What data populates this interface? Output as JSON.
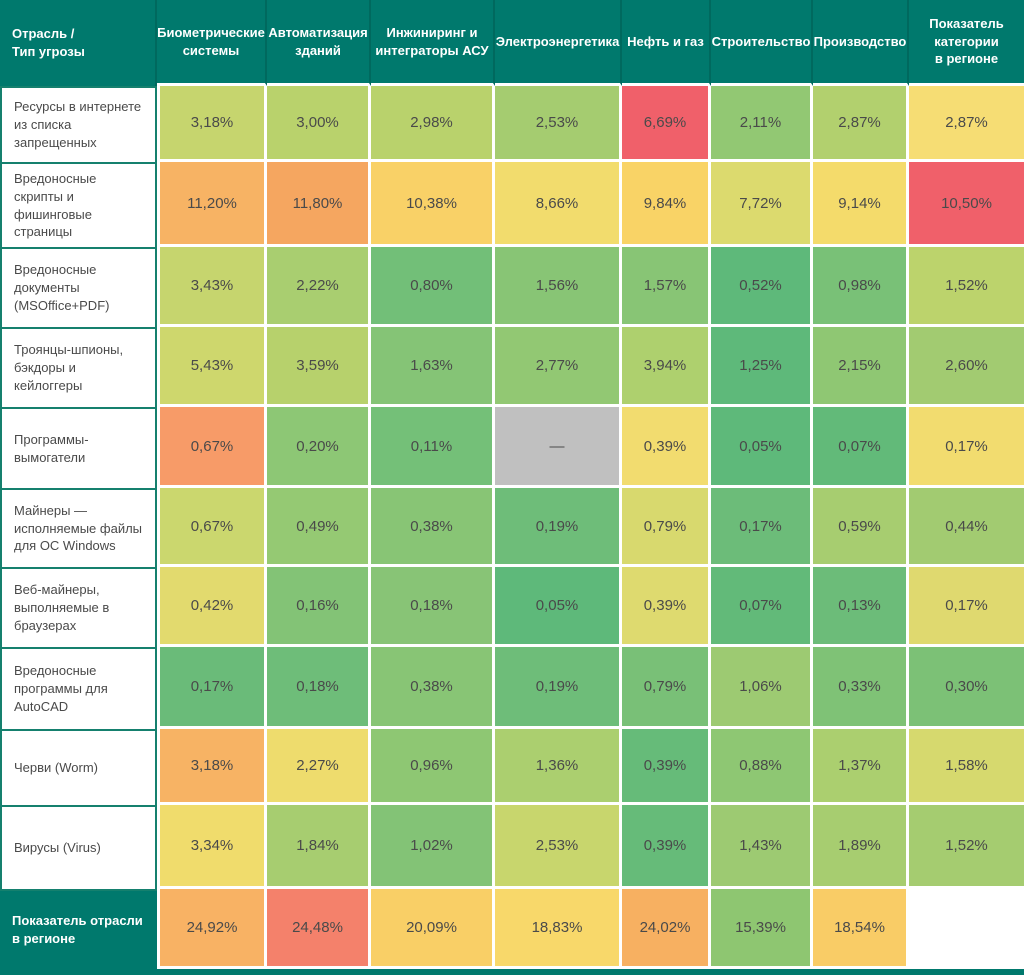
{
  "colors": {
    "header_bg": "#00796d",
    "header_divider": "#00695e",
    "label_border": "#15806e",
    "value_text": "#4a4a4a",
    "na_bg": "#c0c0c0",
    "page_bg": "#ffffff"
  },
  "table": {
    "corner_header": "Отрасль /\nТип угрозы",
    "columns": [
      "Биометрические\nсистемы",
      "Автоматизация\nзданий",
      "Инжиниринг и\nинтеграторы АСУ",
      "Электроэнергетика",
      "Нефть и газ",
      "Строительство",
      "Производство",
      "Показатель\nкатегории\nв регионе"
    ],
    "rows": [
      {
        "label": "Ресурсы в интернете\nиз списка\nзапрещенных",
        "values": [
          "3,18%",
          "3,00%",
          "2,98%",
          "2,53%",
          "6,69%",
          "2,11%",
          "2,87%",
          "2,87%"
        ],
        "colors": [
          "#c6d56e",
          "#b9d26c",
          "#b9d26c",
          "#a5cc70",
          "#f0606a",
          "#92c873",
          "#b2d06e",
          "#f6dd74"
        ]
      },
      {
        "label": "Вредоносные\nскрипты и\nфишинговые\nстраницы",
        "values": [
          "11,20%",
          "11,80%",
          "10,38%",
          "8,66%",
          "9,84%",
          "7,72%",
          "9,14%",
          "10,50%"
        ],
        "colors": [
          "#f7b364",
          "#f5a660",
          "#f9d167",
          "#f2dc6d",
          "#f9d366",
          "#dcda6e",
          "#f4db6b",
          "#f0606a"
        ]
      },
      {
        "label": "Вредоносные\nдокументы\n(MSOffice+PDF)",
        "values": [
          "3,43%",
          "2,22%",
          "0,80%",
          "1,56%",
          "1,57%",
          "0,52%",
          "0,98%",
          "1,52%"
        ],
        "colors": [
          "#c6d56e",
          "#a9ce70",
          "#72bf78",
          "#88c575",
          "#88c575",
          "#5eb97a",
          "#79c177",
          "#bcd36c"
        ]
      },
      {
        "label": "Троянцы-шпионы,\nбэкдоры и\nкейлоггеры",
        "values": [
          "5,43%",
          "3,59%",
          "1,63%",
          "2,77%",
          "3,94%",
          "1,25%",
          "2,15%",
          "2,60%"
        ],
        "colors": [
          "#ced76d",
          "#b7d16c",
          "#85c476",
          "#92c873",
          "#aed06e",
          "#5eb97a",
          "#8fc773",
          "#a2cb71"
        ]
      },
      {
        "label": "Программы-\nвымогатели",
        "values": [
          "0,67%",
          "0,20%",
          "0,11%",
          "—",
          "0,39%",
          "0,05%",
          "0,07%",
          "0,17%"
        ],
        "colors": [
          "#f79b68",
          "#8dc775",
          "#74c078",
          "#c0c0c0",
          "#f2dc6f",
          "#5eb97a",
          "#62ba79",
          "#f2dc6f"
        ]
      },
      {
        "label": "Майнеры —\nисполняемые файлы\nдля ОС Windows",
        "values": [
          "0,67%",
          "0,49%",
          "0,38%",
          "0,19%",
          "0,79%",
          "0,17%",
          "0,59%",
          "0,44%"
        ],
        "colors": [
          "#cbd76e",
          "#95c973",
          "#88c575",
          "#6ebd79",
          "#d8d96e",
          "#6cbc79",
          "#a7cd70",
          "#a2cb71"
        ]
      },
      {
        "label": "Веб-майнеры,\nвыполняемые в\nбраузерах",
        "values": [
          "0,42%",
          "0,16%",
          "0,18%",
          "0,05%",
          "0,39%",
          "0,07%",
          "0,13%",
          "0,17%"
        ],
        "colors": [
          "#e2da6e",
          "#83c376",
          "#88c476",
          "#5eb97a",
          "#deda6f",
          "#62ba79",
          "#6cbc79",
          "#dfd96f"
        ]
      },
      {
        "label": "Вредоносные\nпрограммы для\nAutoCAD",
        "values": [
          "0,17%",
          "0,18%",
          "0,38%",
          "0,19%",
          "0,79%",
          "1,06%",
          "0,33%",
          "0,30%"
        ],
        "colors": [
          "#6abb79",
          "#6ebd79",
          "#88c575",
          "#6ebd79",
          "#79c077",
          "#9dca72",
          "#7fc276",
          "#7cc176"
        ]
      },
      {
        "label": "Черви (Worm)",
        "values": [
          "3,18%",
          "2,27%",
          "0,96%",
          "1,36%",
          "0,39%",
          "0,88%",
          "1,37%",
          "1,58%"
        ],
        "colors": [
          "#f7b364",
          "#eedc6d",
          "#8ec773",
          "#abcf6f",
          "#66bb79",
          "#8ec773",
          "#abcf6f",
          "#d6d96e"
        ]
      },
      {
        "label": "Вирусы (Virus)",
        "values": [
          "3,34%",
          "1,84%",
          "1,02%",
          "2,53%",
          "0,39%",
          "1,43%",
          "1,89%",
          "1,52%"
        ],
        "colors": [
          "#f0dc6c",
          "#a7cd70",
          "#83c376",
          "#c8d66d",
          "#66bb79",
          "#9dca72",
          "#a7cd70",
          "#a5cc70"
        ]
      }
    ],
    "footer": {
      "label": "Показатель отрасли\nв регионе",
      "values": [
        "24,92%",
        "24,48%",
        "20,09%",
        "18,83%",
        "24,02%",
        "15,39%",
        "18,54%",
        ""
      ],
      "colors": [
        "#f8b264",
        "#f4816b",
        "#f9cf66",
        "#f8d86a",
        "#f7b061",
        "#8ec671",
        "#f9cc66",
        "#ffffff"
      ]
    }
  },
  "chart_data": {
    "type": "heatmap",
    "title": "Отрасль / Тип угрозы",
    "unit": "%",
    "columns": [
      "Биометрические системы",
      "Автоматизация зданий",
      "Инжиниринг и интеграторы АСУ",
      "Электроэнергетика",
      "Нефть и газ",
      "Строительство",
      "Производство",
      "Показатель категории в регионе"
    ],
    "rows": [
      "Ресурсы в интернете из списка запрещенных",
      "Вредоносные скрипты и фишинговые страницы",
      "Вредоносные документы (MSOffice+PDF)",
      "Троянцы-шпионы, бэкдоры и кейлоггеры",
      "Программы-вымогатели",
      "Майнеры — исполняемые файлы для ОС Windows",
      "Веб-майнеры, выполняемые в браузерах",
      "Вредоносные программы для AutoCAD",
      "Черви (Worm)",
      "Вирусы (Virus)"
    ],
    "values": [
      [
        3.18,
        3.0,
        2.98,
        2.53,
        6.69,
        2.11,
        2.87,
        2.87
      ],
      [
        11.2,
        11.8,
        10.38,
        8.66,
        9.84,
        7.72,
        9.14,
        10.5
      ],
      [
        3.43,
        2.22,
        0.8,
        1.56,
        1.57,
        0.52,
        0.98,
        1.52
      ],
      [
        5.43,
        3.59,
        1.63,
        2.77,
        3.94,
        1.25,
        2.15,
        2.6
      ],
      [
        0.67,
        0.2,
        0.11,
        null,
        0.39,
        0.05,
        0.07,
        0.17
      ],
      [
        0.67,
        0.49,
        0.38,
        0.19,
        0.79,
        0.17,
        0.59,
        0.44
      ],
      [
        0.42,
        0.16,
        0.18,
        0.05,
        0.39,
        0.07,
        0.13,
        0.17
      ],
      [
        0.17,
        0.18,
        0.38,
        0.19,
        0.79,
        1.06,
        0.33,
        0.3
      ],
      [
        3.18,
        2.27,
        0.96,
        1.36,
        0.39,
        0.88,
        1.37,
        1.58
      ],
      [
        3.34,
        1.84,
        1.02,
        2.53,
        0.39,
        1.43,
        1.89,
        1.52
      ]
    ],
    "footer_row": {
      "label": "Показатель отрасли в регионе",
      "values": [
        24.92,
        24.48,
        20.09,
        18.83,
        24.02,
        15.39,
        18.54,
        null
      ]
    },
    "legend_position": "none",
    "grid": true,
    "color_scale": "green-yellow-red (low to high, per row)"
  }
}
